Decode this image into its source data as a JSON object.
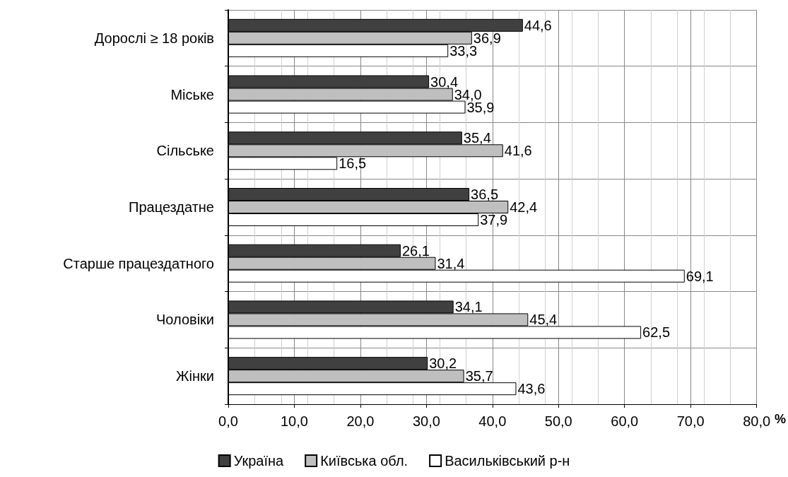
{
  "chart_data": {
    "type": "bar",
    "orientation": "horizontal",
    "xlabel": "%",
    "categories": [
      "Дорослі ≥ 18 років",
      "Міське",
      "Сільське",
      "Працездатне",
      "Старше працездатного",
      "Чоловіки",
      "Жінки"
    ],
    "series": [
      {
        "name": "Україна",
        "color": "#404040",
        "values": [
          44.6,
          30.4,
          35.4,
          36.5,
          26.1,
          34.1,
          30.2
        ],
        "value_labels": [
          "44,6",
          "30,4",
          "35,4",
          "36,5",
          "26,1",
          "34,1",
          "30,2"
        ]
      },
      {
        "name": "Київська обл.",
        "color": "#bfbfbf",
        "values": [
          36.9,
          34.0,
          41.6,
          42.4,
          31.4,
          45.4,
          35.7
        ],
        "value_labels": [
          "36,9",
          "34,0",
          "41,6",
          "42,4",
          "31,4",
          "45,4",
          "35,7"
        ]
      },
      {
        "name": "Васильківський р-н",
        "color": "#ffffff",
        "values": [
          33.3,
          35.9,
          16.5,
          37.9,
          69.1,
          62.5,
          43.6
        ],
        "value_labels": [
          "33,3",
          "35,9",
          "16,5",
          "37,9",
          "69,1",
          "62,5",
          "43,6"
        ]
      }
    ],
    "xlim": [
      0,
      80
    ],
    "xticks": [
      {
        "value": 0,
        "label": "0,0"
      },
      {
        "value": 10,
        "label": "10,0"
      },
      {
        "value": 20,
        "label": "20,0"
      },
      {
        "value": 30,
        "label": "30,0"
      },
      {
        "value": 40,
        "label": "40,0"
      },
      {
        "value": 50,
        "label": "50,0"
      },
      {
        "value": 60,
        "label": "60,0"
      },
      {
        "value": 70,
        "label": "70,0"
      },
      {
        "value": 80,
        "label": "80,0"
      }
    ],
    "grid": true,
    "legend": "bottom"
  }
}
